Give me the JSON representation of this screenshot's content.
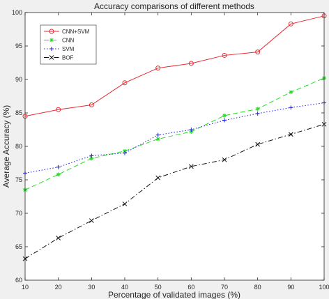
{
  "chart_data": {
    "type": "line",
    "title": "Accuracy comparisons of different methods",
    "xlabel": "Percentage of validated images (%)",
    "ylabel": "Average Accuracy (%)",
    "xlim": [
      10,
      100
    ],
    "ylim": [
      60,
      100
    ],
    "x": [
      10,
      20,
      30,
      40,
      50,
      60,
      70,
      80,
      90,
      100
    ],
    "xticks": [
      10,
      20,
      30,
      40,
      50,
      60,
      70,
      80,
      90,
      100
    ],
    "yticks": [
      60,
      65,
      70,
      75,
      80,
      85,
      90,
      95,
      100
    ],
    "grid": false,
    "legend": "top-left",
    "series": [
      {
        "name": "CNN+SVM",
        "color": "#e8282e",
        "dash": "solid",
        "marker": "circle",
        "values": [
          84.5,
          85.5,
          86.2,
          89.5,
          91.7,
          92.4,
          93.6,
          94.1,
          98.3,
          99.5
        ]
      },
      {
        "name": "CNN",
        "color": "#22dd22",
        "dash": "dashed",
        "marker": "asterisk",
        "values": [
          73.5,
          75.8,
          78.2,
          79.3,
          81.1,
          82.2,
          84.6,
          85.6,
          88.1,
          90.2
        ]
      },
      {
        "name": "SVM",
        "color": "#1e1ee6",
        "dash": "dotted",
        "marker": "plus",
        "values": [
          76.0,
          76.9,
          78.6,
          79.0,
          81.7,
          82.5,
          83.9,
          84.9,
          85.8,
          86.5
        ]
      },
      {
        "name": "BOF",
        "color": "#111111",
        "dash": "dashdot",
        "marker": "x",
        "values": [
          63.2,
          66.3,
          68.9,
          71.4,
          75.3,
          77.0,
          78.0,
          80.3,
          81.8,
          83.3
        ]
      }
    ]
  }
}
